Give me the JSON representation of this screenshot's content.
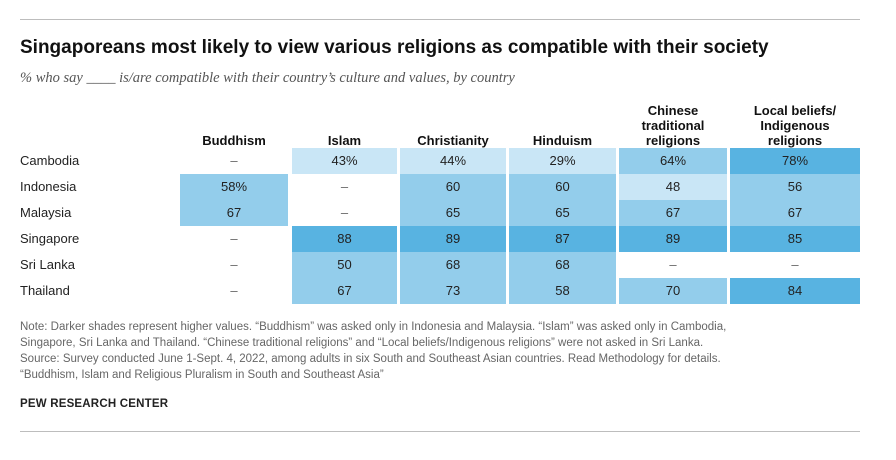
{
  "title": "Singaporeans most likely to view various religions as compatible with their society",
  "subtitle": "% who say ____ is/are compatible with their country’s culture and values, by country",
  "chart_data": {
    "type": "heatmap",
    "columns": [
      "Buddhism",
      "Islam",
      "Christianity",
      "Hinduism",
      "Chinese traditional religions",
      "Local beliefs/ Indigenous religions"
    ],
    "column_lines": [
      [
        "Buddhism"
      ],
      [
        "Islam"
      ],
      [
        "Christianity"
      ],
      [
        "Hinduism"
      ],
      [
        "Chinese",
        "traditional",
        "religions"
      ],
      [
        "Local beliefs/",
        "Indigenous",
        "religions"
      ]
    ],
    "rows": [
      "Cambodia",
      "Indonesia",
      "Malaysia",
      "Singapore",
      "Sri Lanka",
      "Thailand"
    ],
    "values": [
      [
        null,
        43,
        44,
        29,
        64,
        78
      ],
      [
        58,
        null,
        60,
        60,
        48,
        56
      ],
      [
        67,
        null,
        65,
        65,
        67,
        67
      ],
      [
        null,
        88,
        89,
        87,
        89,
        85
      ],
      [
        null,
        50,
        68,
        68,
        null,
        null
      ],
      [
        null,
        67,
        73,
        58,
        70,
        84
      ]
    ],
    "display": [
      [
        "–",
        "43%",
        "44%",
        "29%",
        "64%",
        "78%"
      ],
      [
        "58%",
        "–",
        "60",
        "60",
        "48",
        "56"
      ],
      [
        "67",
        "–",
        "65",
        "65",
        "67",
        "67"
      ],
      [
        "–",
        "88",
        "89",
        "87",
        "89",
        "85"
      ],
      [
        "–",
        "50",
        "68",
        "68",
        "–",
        "–"
      ],
      [
        "–",
        "67",
        "73",
        "58",
        "70",
        "84"
      ]
    ],
    "color_scale": {
      "empty": "#ffffff",
      "light": "#c9e6f6",
      "medium": "#93cdeb",
      "dark": "#58b3e1"
    },
    "legend": "none"
  },
  "notes": [
    "Note: Darker shades represent higher values. “Buddhism” was asked only in Indonesia and Malaysia. “Islam” was asked only in Cambodia,",
    "Singapore, Sri Lanka and Thailand. “Chinese traditional religions” and “Local beliefs/Indigenous religions” were not asked in Sri Lanka.",
    "Source: Survey conducted June 1-Sept. 4, 2022, among adults in six South and Southeast Asian countries. Read Methodology for details.",
    "“Buddhism, Islam and Religious Pluralism in South and Southeast Asia”"
  ],
  "brand": "PEW RESEARCH CENTER"
}
